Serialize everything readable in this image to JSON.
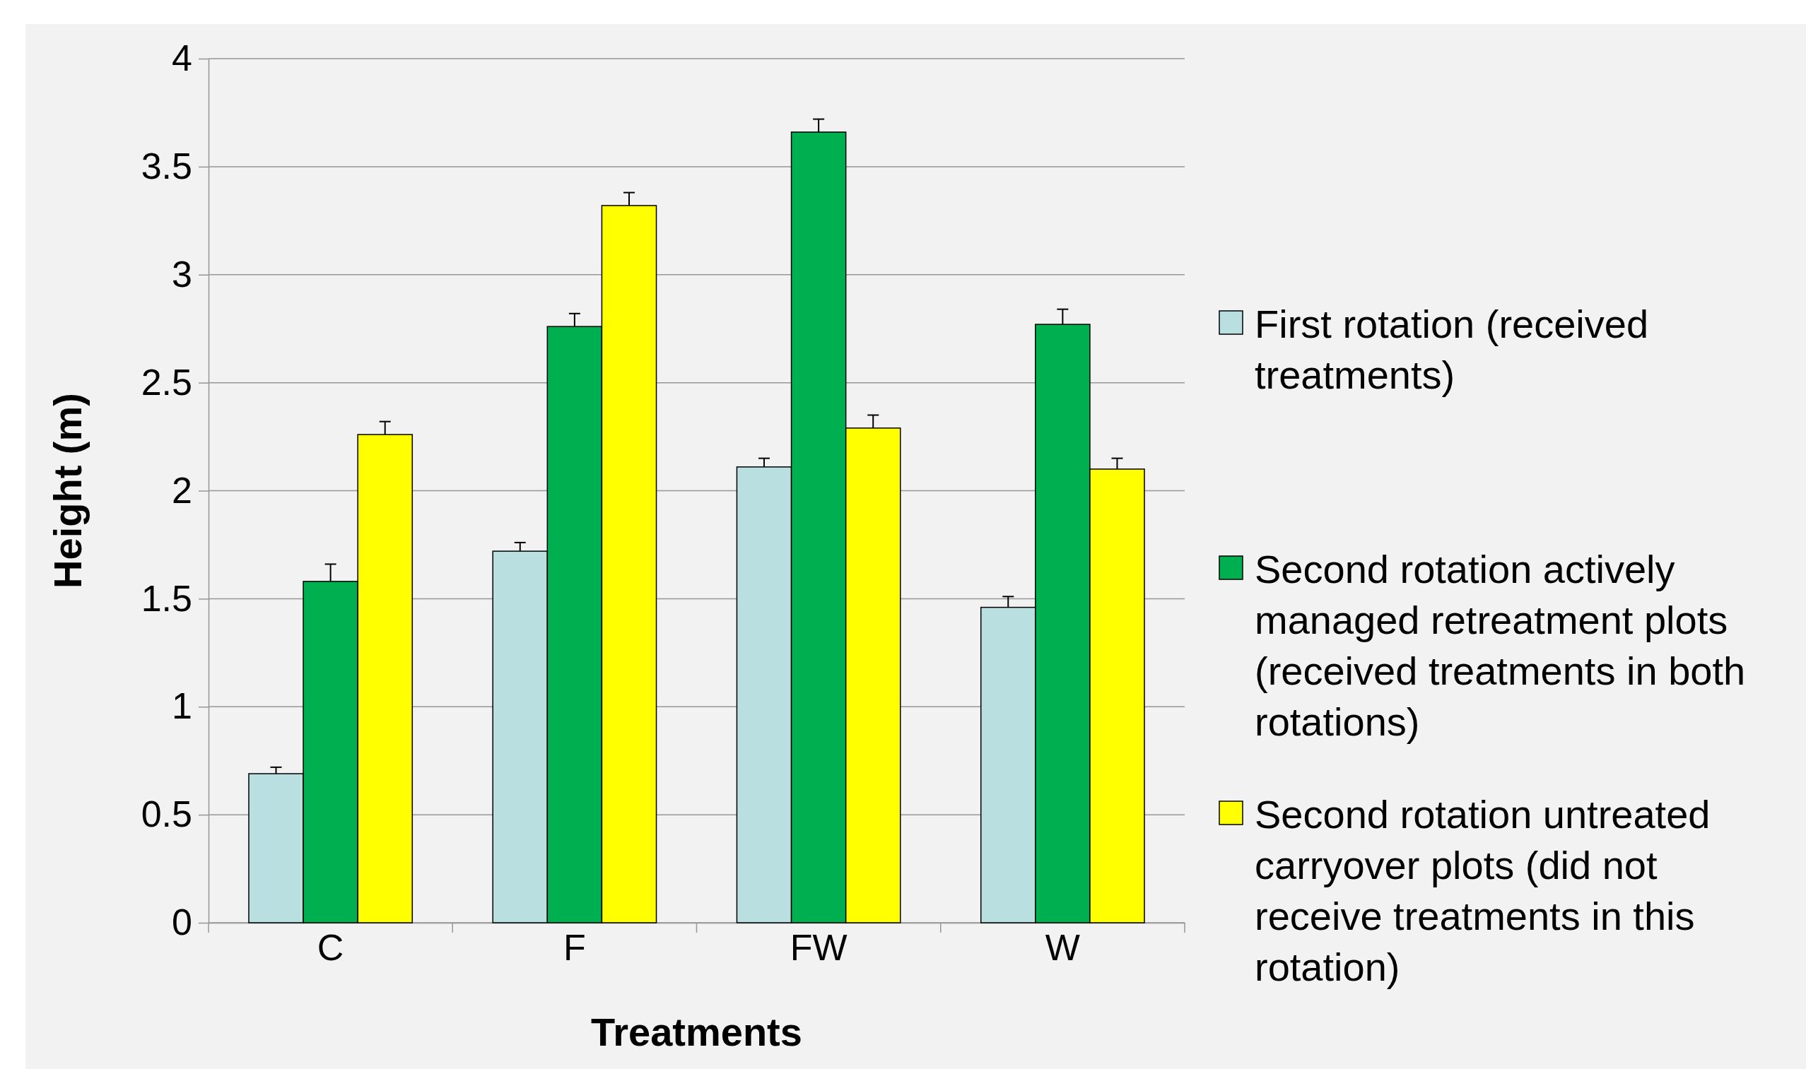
{
  "chart_data": {
    "type": "bar",
    "xlabel": "Treatments",
    "ylabel": "Height (m)",
    "categories": [
      "C",
      "F",
      "FW",
      "W"
    ],
    "series": [
      {
        "name": "First rotation (received treatments)",
        "color": "#b9dfe0",
        "values": [
          0.69,
          1.72,
          2.11,
          1.46
        ],
        "errors": [
          [
            0.69,
            0.72
          ],
          [
            1.72,
            1.76
          ],
          [
            2.11,
            2.15
          ],
          [
            1.46,
            1.51
          ]
        ]
      },
      {
        "name": "Second rotation actively managed retreatment plots (received treatments in both rotations)",
        "color": "#00b050",
        "values": [
          1.58,
          2.76,
          3.66,
          2.77
        ],
        "errors": [
          [
            1.58,
            1.66
          ],
          [
            2.76,
            2.82
          ],
          [
            3.66,
            3.72
          ],
          [
            2.77,
            2.84
          ]
        ]
      },
      {
        "name": "Second rotation untreated carryover plots (did not receive treatments in this rotation)",
        "color": "#ffff00",
        "values": [
          2.26,
          3.32,
          2.29,
          2.1
        ],
        "errors": [
          [
            2.26,
            2.32
          ],
          [
            3.32,
            3.38
          ],
          [
            2.29,
            2.35
          ],
          [
            2.1,
            2.15
          ]
        ]
      }
    ],
    "ylim": [
      0,
      4
    ],
    "yticks": [
      0,
      0.5,
      1,
      1.5,
      2,
      2.5,
      3,
      3.5,
      4
    ],
    "grid": "y",
    "legend": "right"
  }
}
